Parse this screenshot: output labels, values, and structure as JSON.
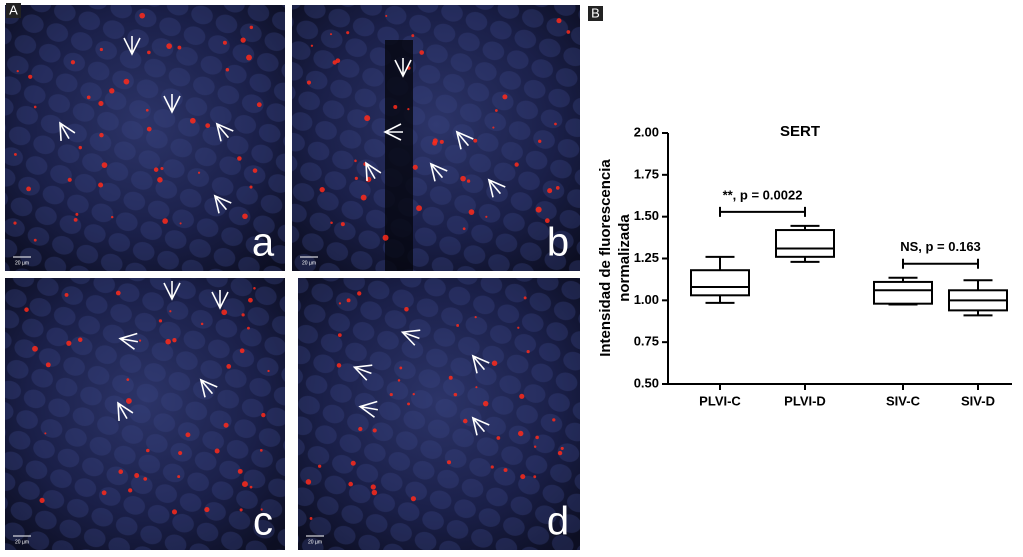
{
  "figure_labels": [
    "A",
    "B"
  ],
  "panels": [
    {
      "letter": "a",
      "scale": "20 µm"
    },
    {
      "letter": "b",
      "scale": "20 µm"
    },
    {
      "letter": "c",
      "scale": "20 µm"
    },
    {
      "letter": "d",
      "scale": "20 µm"
    }
  ],
  "chart_data": {
    "type": "box",
    "title": "SERT",
    "ylabel": [
      "Intensidad de fluorescencia",
      "normalizada"
    ],
    "categories": [
      "PLVI-C",
      "PLVI-D",
      "SIV-C",
      "SIV-D"
    ],
    "boxes": [
      {
        "min": 0.985,
        "q1": 1.03,
        "median": 1.08,
        "q3": 1.18,
        "max": 1.26
      },
      {
        "min": 1.23,
        "q1": 1.26,
        "median": 1.31,
        "q3": 1.42,
        "max": 1.445
      },
      {
        "min": 0.975,
        "q1": 0.98,
        "median": 1.06,
        "q3": 1.11,
        "max": 1.135
      },
      {
        "min": 0.91,
        "q1": 0.94,
        "median": 1.0,
        "q3": 1.06,
        "max": 1.12
      }
    ],
    "color": "#000000",
    "ylim": [
      0.5,
      2.0
    ],
    "yticks": [
      {
        "value": 0.5,
        "label": "0.50"
      },
      {
        "value": 0.75,
        "label": "0.75"
      },
      {
        "value": 1.0,
        "label": "1.00"
      },
      {
        "value": 1.25,
        "label": "1.25"
      },
      {
        "value": 1.5,
        "label": "1.50"
      },
      {
        "value": 1.75,
        "label": "1.75"
      },
      {
        "value": 2.0,
        "label": "2.00"
      }
    ],
    "comparisons": [
      {
        "from": 0,
        "to": 1,
        "label": "**, p = 0.0022"
      },
      {
        "from": 2,
        "to": 3,
        "label": "NS, p = 0.163"
      }
    ]
  }
}
